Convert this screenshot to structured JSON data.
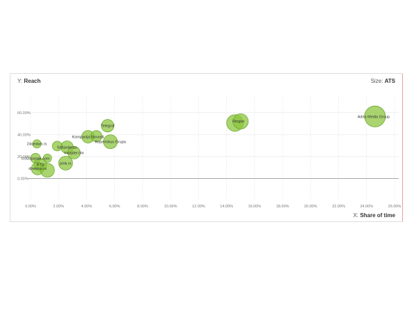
{
  "chart_data": {
    "type": "scatter",
    "ylabel_prefix": "Y:",
    "ylabel": "Reach",
    "xlabel_prefix": "X:",
    "xlabel": "Share of time",
    "size_prefix": "Size:",
    "size_label": "ATS",
    "x_ticks": [
      "0.00%",
      "2.00%",
      "4.00%",
      "6.00%",
      "8.00%",
      "10.00%",
      "12.00%",
      "14.00%",
      "16.00%",
      "18.00%",
      "20.00%",
      "22.00%",
      "24.00%",
      "26.00%"
    ],
    "y_ticks": [
      "0.00%",
      "20.00%",
      "40.00%",
      "60.00%"
    ],
    "xlim": [
      0,
      26
    ],
    "ylim": [
      -20,
      70
    ],
    "bubbles": [
      {
        "label": "Adria Media Group",
        "x": 24.6,
        "y": 56.5,
        "r": 15,
        "label_dx": -2,
        "label_dy": 0
      },
      {
        "label": "Ringier",
        "x": 14.6,
        "y": 50.5,
        "r": 12,
        "label_dx": 5,
        "label_dy": -3
      },
      {
        "label": "",
        "x": 15.0,
        "y": 52.0,
        "r": 11,
        "label_dx": 0,
        "label_dy": 0
      },
      {
        "label": "Telegraf",
        "x": 5.5,
        "y": 48.0,
        "r": 9,
        "label_dx": 0,
        "label_dy": 0
      },
      {
        "label": "Kompanija Novosti",
        "x": 4.1,
        "y": 38.0,
        "r": 9,
        "label_dx": 0,
        "label_dy": 0
      },
      {
        "label": "Kopernikus Grupa",
        "x": 5.7,
        "y": 33.5,
        "r": 10,
        "label_dx": 0,
        "label_dy": 0
      },
      {
        "label": "",
        "x": 4.7,
        "y": 38.5,
        "r": 8,
        "label_dx": 0,
        "label_dy": 0
      },
      {
        "label": "24sedam.rs",
        "x": 0.45,
        "y": 31.5,
        "r": 6,
        "label_dx": 0,
        "label_dy": 0
      },
      {
        "label": "Srbijadanas",
        "x": 2.6,
        "y": 28.5,
        "r": 9,
        "label_dx": 0,
        "label_dy": 0
      },
      {
        "label": "",
        "x": 1.9,
        "y": 29.5,
        "r": 7,
        "label_dx": 0,
        "label_dy": 0
      },
      {
        "label": "Insajder.tim",
        "x": 3.1,
        "y": 23.5,
        "r": 9,
        "label_dx": 0,
        "label_dy": 0
      },
      {
        "label": "0.00opanak.com",
        "x": 0.35,
        "y": 18.5,
        "r": 7,
        "label_dx": 0,
        "label_dy": 0
      },
      {
        "label": "",
        "x": 1.2,
        "y": 18.5,
        "r": 6,
        "label_dx": 0,
        "label_dy": 0
      },
      {
        "label": "pink.rs",
        "x": 2.5,
        "y": 14.0,
        "r": 10,
        "label_dx": 0,
        "label_dy": 0
      },
      {
        "label": "RTS",
        "x": 0.7,
        "y": 12.5,
        "r": 9,
        "label_dx": 0,
        "label_dy": 0
      },
      {
        "label": "direktno.rs",
        "x": 0.5,
        "y": 9.0,
        "r": 9,
        "label_dx": 0,
        "label_dy": 0
      },
      {
        "label": "",
        "x": 1.2,
        "y": 7.5,
        "r": 10,
        "label_dx": 0,
        "label_dy": 0
      }
    ],
    "bubble_fill": "#8cc63f",
    "bubble_stroke": "#6fa82e",
    "grid": true
  }
}
